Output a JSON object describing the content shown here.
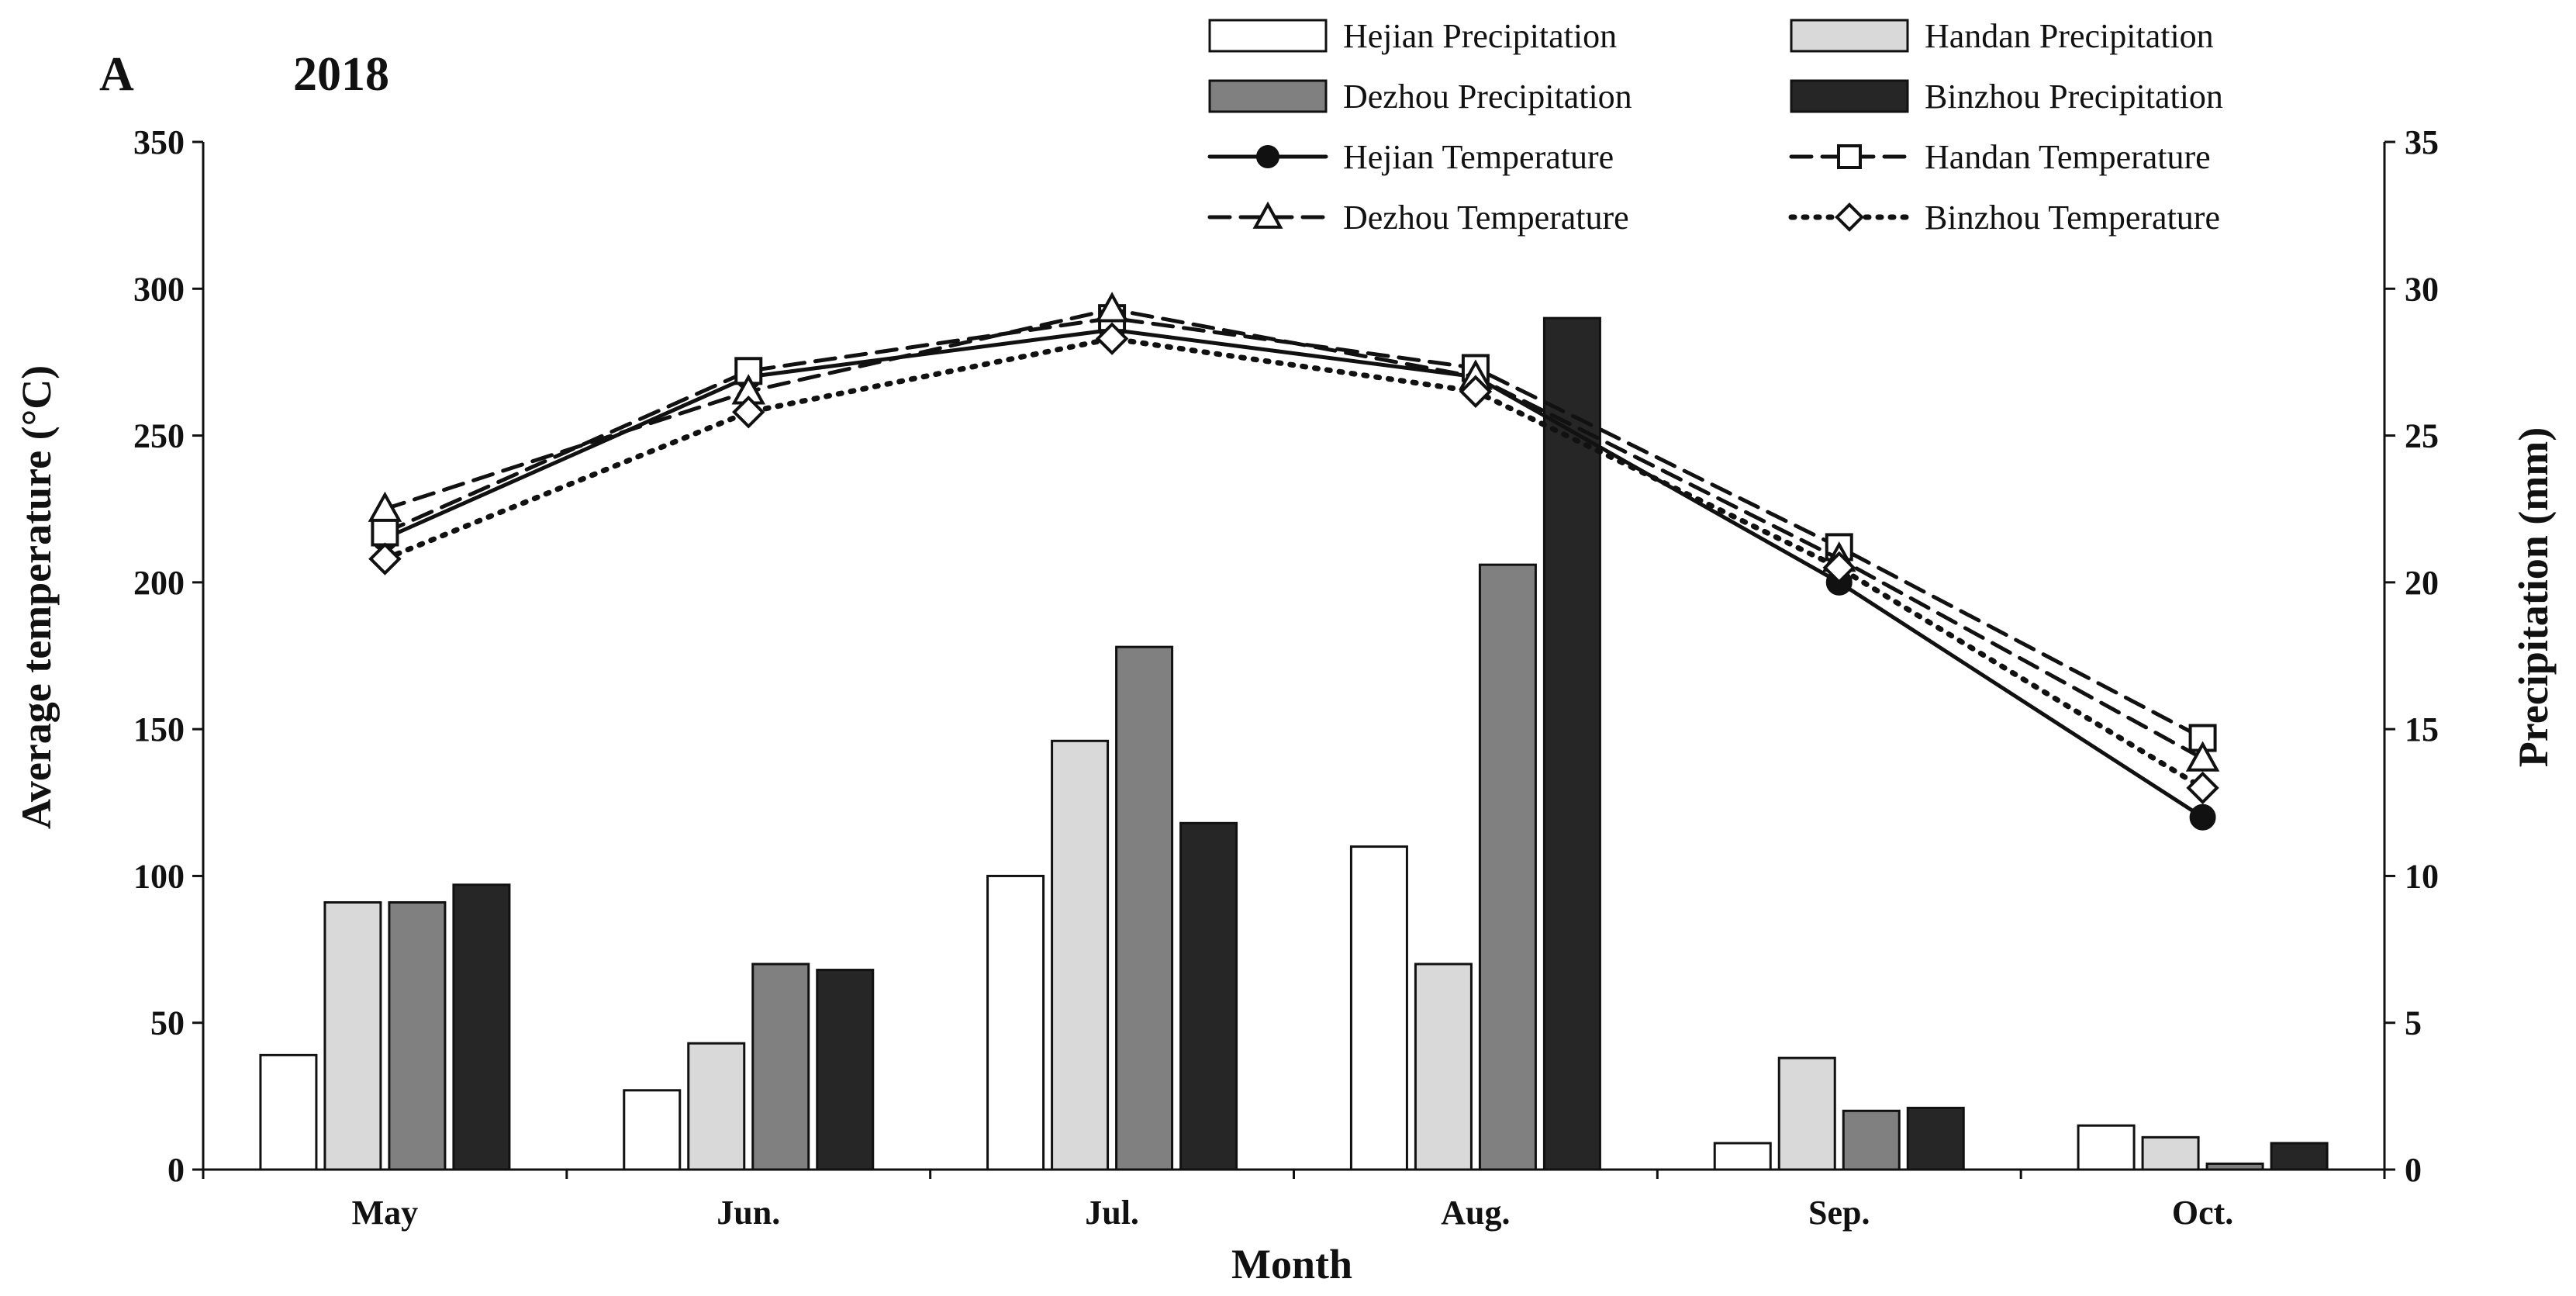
{
  "chart_data": {
    "type": "bar",
    "panel_label": "A",
    "title": "2018",
    "xlabel": "Month",
    "ylabel_left": "Average temperature (°C)",
    "ylabel_right": "Precipitation (mm)",
    "categories": [
      "May",
      "Jun.",
      "Jul.",
      "Aug.",
      "Sep.",
      "Oct."
    ],
    "ylim_left": [
      0,
      350
    ],
    "yticks_left": [
      0,
      50,
      100,
      150,
      200,
      250,
      300,
      350
    ],
    "ylim_right": [
      0,
      35
    ],
    "yticks_right": [
      0,
      5,
      10,
      15,
      20,
      25,
      30,
      35
    ],
    "bar_series": [
      {
        "name": "Hejian Precipitation",
        "fill": "#ffffff",
        "values": [
          39,
          27,
          100,
          110,
          9,
          15
        ]
      },
      {
        "name": "Handan Precipitation",
        "fill": "#d9d9d9",
        "values": [
          91,
          43,
          146,
          70,
          38,
          11
        ]
      },
      {
        "name": "Dezhou Precipitation",
        "fill": "#808080",
        "values": [
          91,
          70,
          178,
          206,
          20,
          2
        ]
      },
      {
        "name": "Binzhou Precipitation",
        "fill": "#262626",
        "values": [
          97,
          68,
          118,
          290,
          21,
          9
        ]
      }
    ],
    "line_series": [
      {
        "name": "Hejian Temperature",
        "marker": "circle",
        "dash": "solid",
        "values": [
          21.5,
          27.0,
          28.6,
          27.0,
          20.0,
          12.0
        ]
      },
      {
        "name": "Handan Temperature",
        "marker": "square",
        "dash": "dashed",
        "values": [
          21.7,
          27.2,
          29.0,
          27.3,
          21.2,
          14.7
        ]
      },
      {
        "name": "Dezhou Temperature",
        "marker": "triangle",
        "dash": "dashed",
        "values": [
          22.5,
          26.5,
          29.3,
          27.0,
          20.8,
          14.0
        ]
      },
      {
        "name": "Binzhou Temperature",
        "marker": "diamond",
        "dash": "dotted",
        "values": [
          20.8,
          25.8,
          28.3,
          26.5,
          20.5,
          13.0
        ]
      }
    ],
    "legend_position": "top-right"
  }
}
